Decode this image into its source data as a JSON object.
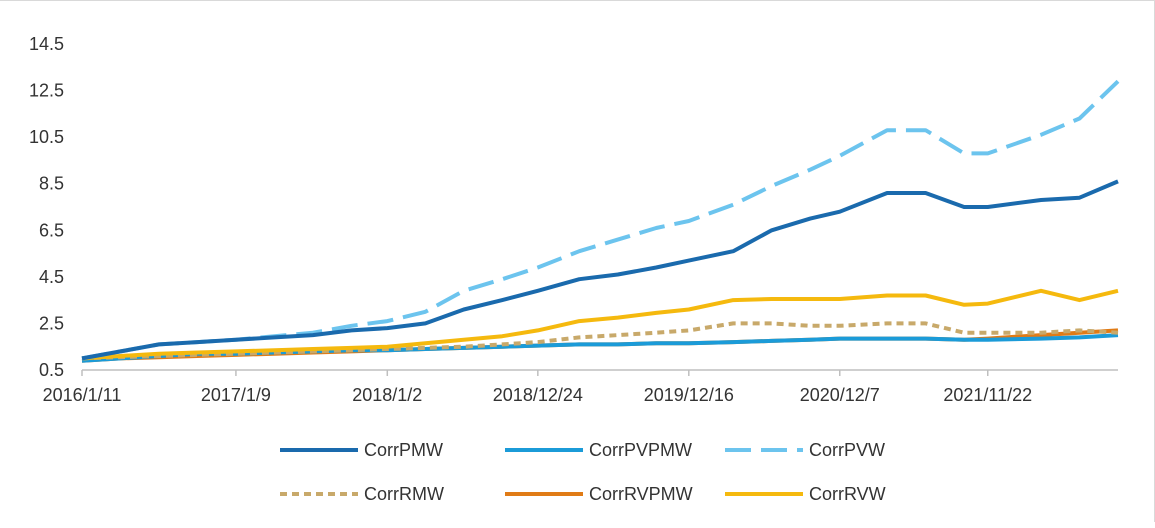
{
  "chart_data": {
    "type": "line",
    "title": "",
    "xlabel": "",
    "ylabel": "",
    "ylim": [
      0.5,
      14.5
    ],
    "yticks": [
      "0.5",
      "2.5",
      "4.5",
      "6.5",
      "8.5",
      "10.5",
      "12.5",
      "14.5"
    ],
    "xticks": [
      "2016/1/11",
      "2017/1/9",
      "2018/1/2",
      "2018/12/24",
      "2019/12/16",
      "2020/12/7",
      "2021/11/22"
    ],
    "grid": false,
    "legend_position": "bottom",
    "x": [
      "2016/1/11",
      "2016/4/11",
      "2016/7/11",
      "2016/10/10",
      "2017/1/9",
      "2017/4/10",
      "2017/7/10",
      "2017/10/9",
      "2018/1/2",
      "2018/4/2",
      "2018/7/2",
      "2018/10/1",
      "2018/12/24",
      "2019/4/1",
      "2019/7/1",
      "2019/9/30",
      "2019/12/16",
      "2020/3/30",
      "2020/6/29",
      "2020/9/28",
      "2020/12/7",
      "2021/3/29",
      "2021/6/28",
      "2021/9/27",
      "2021/11/22",
      "2022/3/28",
      "2022/6/27",
      "2022/9/26"
    ],
    "series": [
      {
        "name": "CorrPMW",
        "color": "#1a6aad",
        "dash": "solid",
        "values": [
          1.0,
          1.3,
          1.6,
          1.7,
          1.8,
          1.9,
          2.0,
          2.2,
          2.3,
          2.5,
          3.1,
          3.5,
          3.9,
          4.4,
          4.6,
          4.9,
          5.2,
          5.6,
          6.5,
          7.0,
          7.3,
          8.1,
          8.1,
          7.5,
          7.5,
          7.8,
          7.9,
          8.6
        ]
      },
      {
        "name": "CorrPVPMW",
        "color": "#1b9bd8",
        "dash": "solid",
        "values": [
          0.9,
          1.0,
          1.1,
          1.2,
          1.2,
          1.25,
          1.3,
          1.35,
          1.35,
          1.4,
          1.45,
          1.5,
          1.55,
          1.6,
          1.6,
          1.65,
          1.65,
          1.7,
          1.75,
          1.8,
          1.85,
          1.85,
          1.85,
          1.8,
          1.8,
          1.85,
          1.9,
          2.0
        ]
      },
      {
        "name": "CorrPVW",
        "color": "#6cc4ee",
        "dash": "long",
        "values": [
          1.0,
          1.3,
          1.6,
          1.7,
          1.8,
          1.95,
          2.1,
          2.4,
          2.6,
          3.0,
          3.9,
          4.4,
          4.9,
          5.6,
          6.1,
          6.6,
          6.9,
          7.6,
          8.4,
          9.1,
          9.7,
          10.8,
          10.8,
          9.8,
          9.8,
          10.6,
          11.3,
          12.9
        ]
      },
      {
        "name": "CorrRMW",
        "color": "#c8a96a",
        "dash": "short",
        "values": [
          1.0,
          1.05,
          1.1,
          1.15,
          1.2,
          1.25,
          1.3,
          1.35,
          1.4,
          1.45,
          1.5,
          1.6,
          1.7,
          1.9,
          2.0,
          2.1,
          2.2,
          2.5,
          2.5,
          2.4,
          2.4,
          2.5,
          2.5,
          2.1,
          2.1,
          2.1,
          2.2,
          2.1
        ]
      },
      {
        "name": "CorrRVPMW",
        "color": "#e07b16",
        "dash": "solid",
        "values": [
          0.9,
          1.0,
          1.05,
          1.1,
          1.15,
          1.2,
          1.25,
          1.3,
          1.35,
          1.4,
          1.45,
          1.5,
          1.55,
          1.6,
          1.6,
          1.65,
          1.65,
          1.7,
          1.75,
          1.8,
          1.85,
          1.85,
          1.85,
          1.8,
          1.85,
          2.0,
          2.1,
          2.2
        ]
      },
      {
        "name": "CorrRVW",
        "color": "#f5b90e",
        "dash": "solid",
        "values": [
          1.0,
          1.1,
          1.2,
          1.25,
          1.3,
          1.35,
          1.4,
          1.45,
          1.5,
          1.65,
          1.8,
          1.95,
          2.2,
          2.6,
          2.75,
          2.95,
          3.1,
          3.5,
          3.55,
          3.55,
          3.55,
          3.7,
          3.7,
          3.3,
          3.35,
          3.9,
          3.5,
          3.9
        ]
      }
    ]
  }
}
